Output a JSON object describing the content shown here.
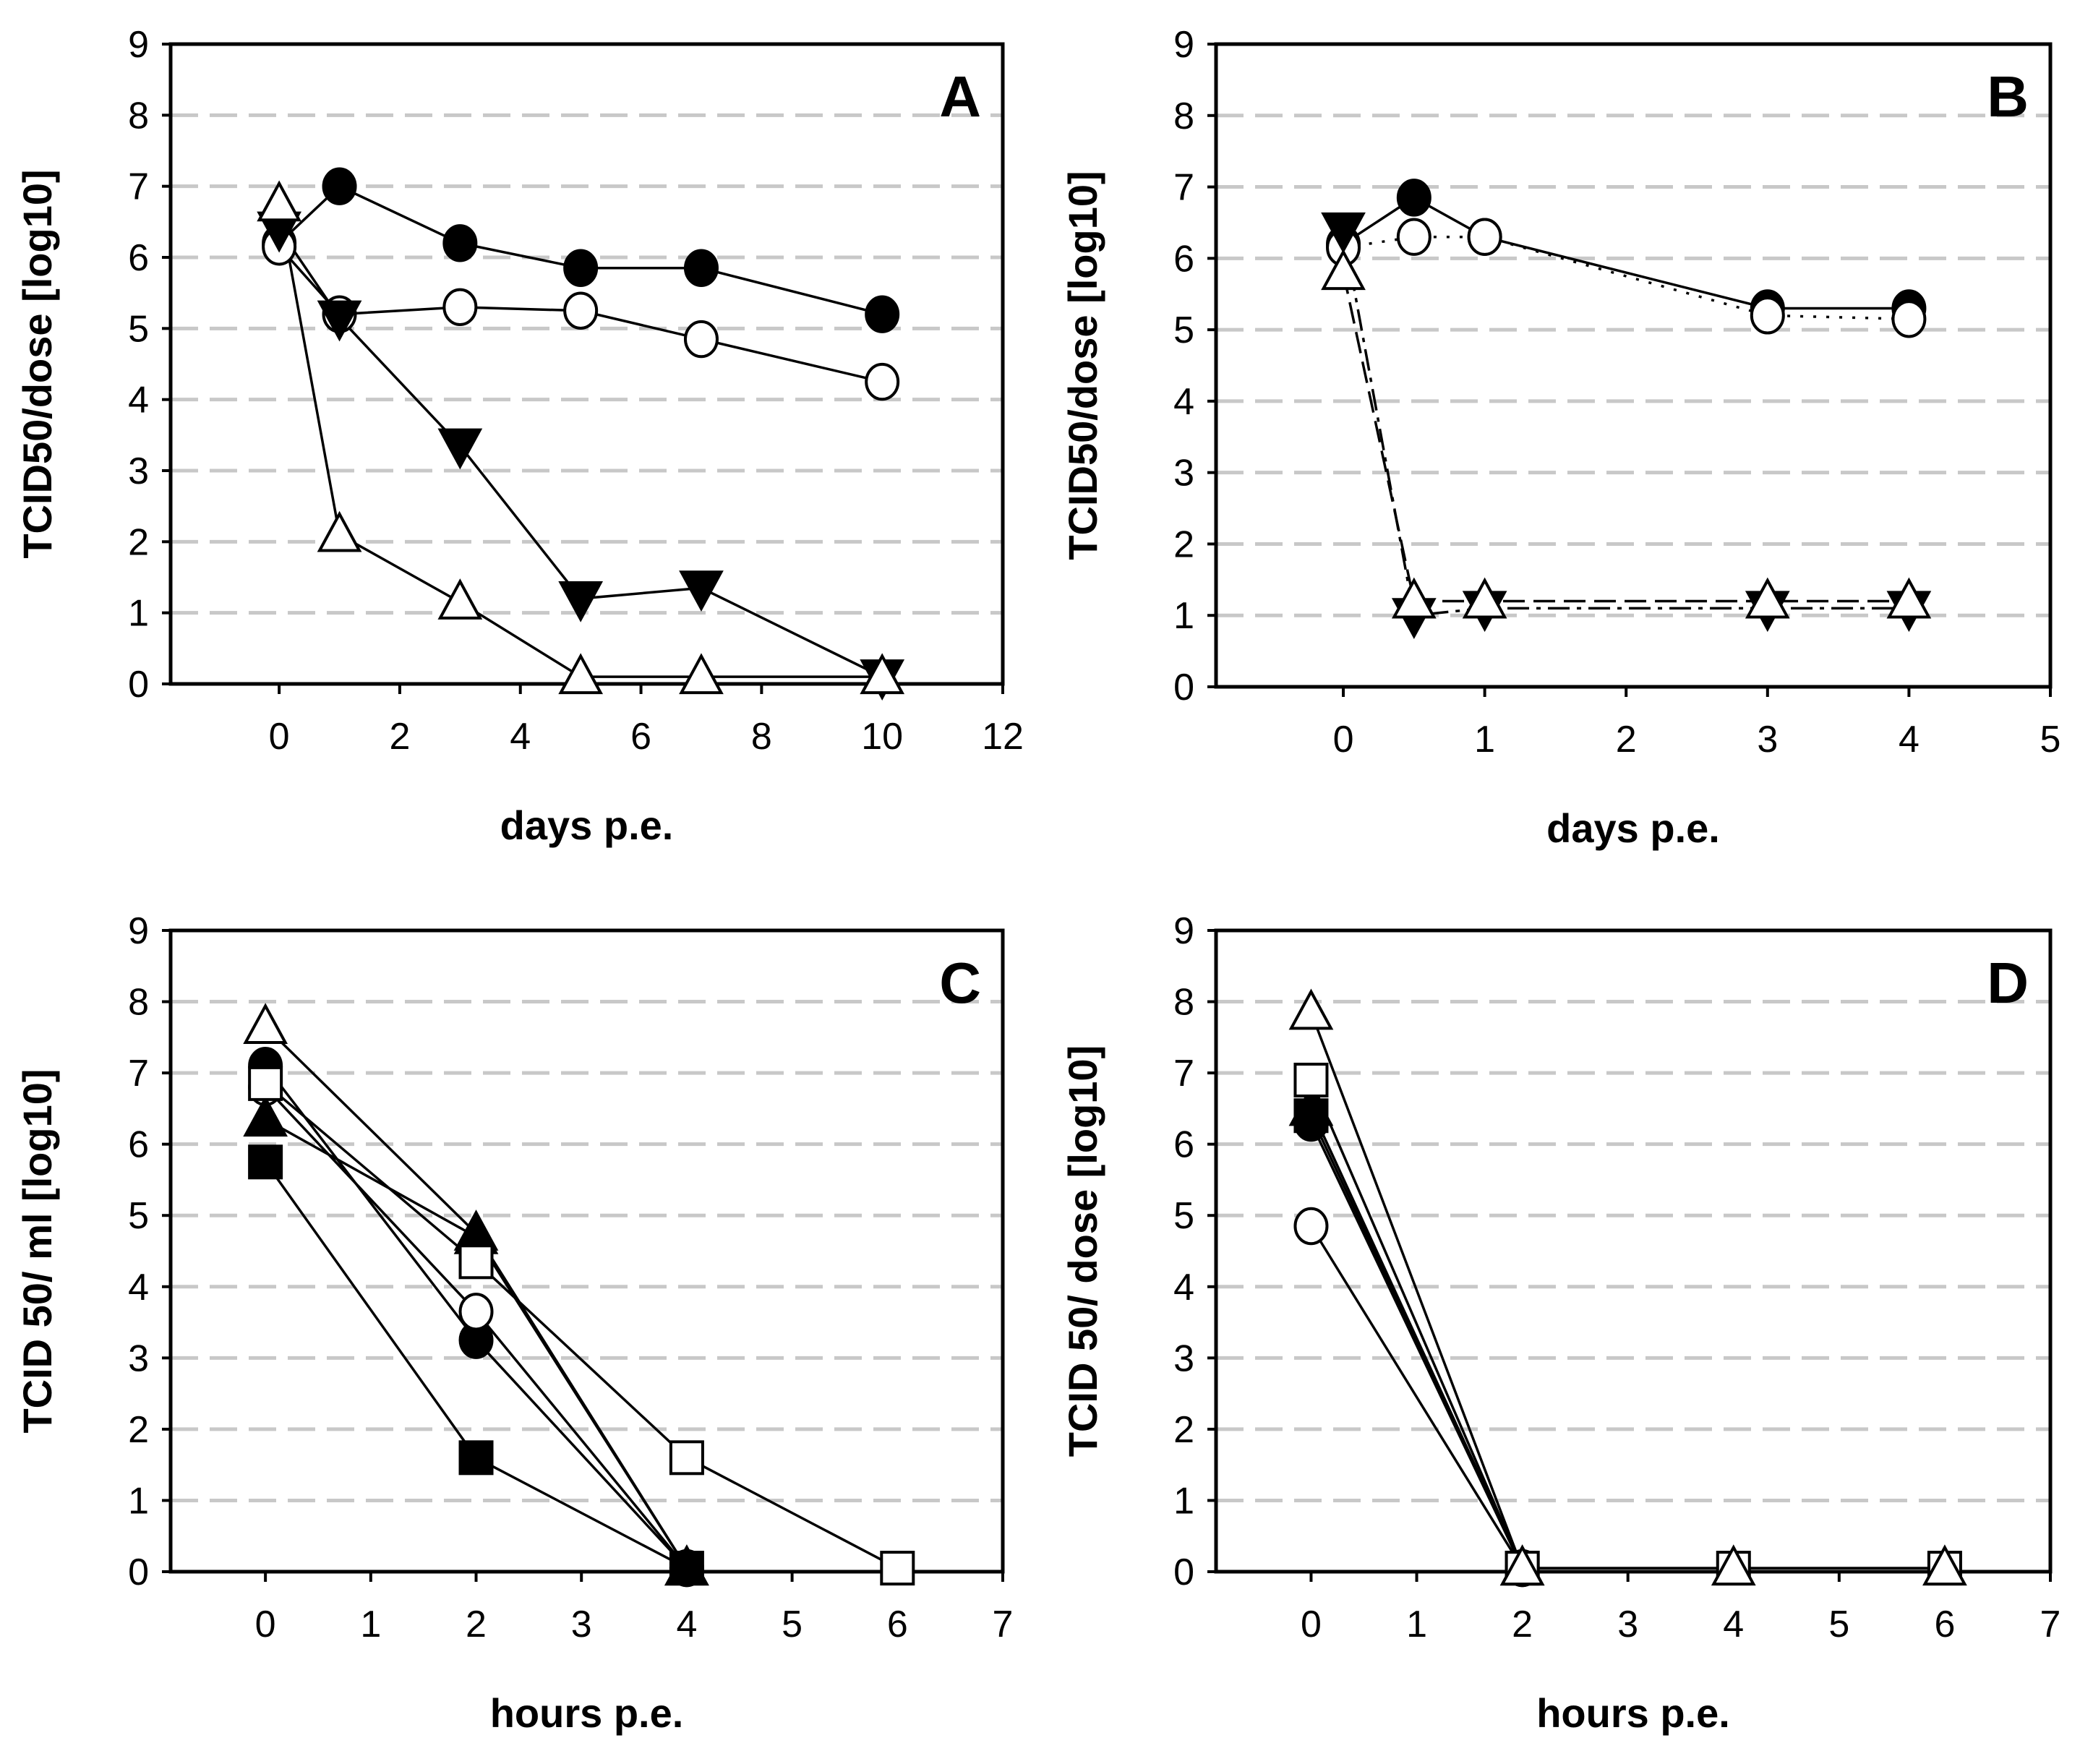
{
  "chart_data": [
    {
      "panel": "A",
      "type": "line",
      "xlabel": "days p.e.",
      "ylabel": "TCID50/dose [log10]",
      "xlim": [
        -1.8,
        12
      ],
      "ylim": [
        0,
        9
      ],
      "xticks": [
        0,
        2,
        4,
        6,
        8,
        10,
        12
      ],
      "yticks": [
        0,
        1,
        2,
        3,
        4,
        5,
        6,
        7,
        8,
        9
      ],
      "grid": "horizontal dashed",
      "series": [
        {
          "marker": "filled-circle",
          "dash": "solid",
          "x": [
            0,
            1,
            3,
            5,
            7,
            10
          ],
          "y": [
            6.2,
            7.0,
            6.2,
            5.85,
            5.85,
            5.2
          ]
        },
        {
          "marker": "open-circle",
          "dash": "solid",
          "x": [
            0,
            1,
            3,
            5,
            7,
            10
          ],
          "y": [
            6.15,
            5.2,
            5.3,
            5.25,
            4.85,
            4.25
          ]
        },
        {
          "marker": "filled-triangle-down",
          "dash": "solid",
          "x": [
            0,
            1,
            3,
            5,
            7,
            10
          ],
          "y": [
            6.4,
            5.15,
            3.35,
            1.2,
            1.35,
            0.1
          ]
        },
        {
          "marker": "open-triangle",
          "dash": "solid",
          "x": [
            0,
            1,
            3,
            5,
            7,
            10
          ],
          "y": [
            6.75,
            2.1,
            1.15,
            0.1,
            0.1,
            0.1
          ]
        }
      ]
    },
    {
      "panel": "B",
      "type": "line",
      "xlabel": "days p.e.",
      "ylabel": "TCID50/dose [log10]",
      "xlim": [
        -0.9,
        5
      ],
      "ylim": [
        0,
        9
      ],
      "xticks": [
        0,
        1,
        2,
        3,
        4,
        5
      ],
      "yticks": [
        0,
        1,
        2,
        3,
        4,
        5,
        6,
        7,
        8,
        9
      ],
      "grid": "horizontal dashed",
      "series": [
        {
          "marker": "filled-circle",
          "dash": "solid",
          "x": [
            0,
            0.5,
            1,
            3,
            4
          ],
          "y": [
            6.2,
            6.85,
            6.3,
            5.3,
            5.3
          ]
        },
        {
          "marker": "open-circle",
          "dash": "dotted",
          "x": [
            0,
            0.5,
            1,
            3,
            4
          ],
          "y": [
            6.15,
            6.3,
            6.3,
            5.2,
            5.15
          ]
        },
        {
          "marker": "filled-triangle-down",
          "dash": "dashdot",
          "x": [
            0,
            0.5,
            1,
            3,
            4
          ],
          "y": [
            6.4,
            1.0,
            1.1,
            1.1,
            1.1
          ]
        },
        {
          "marker": "open-triangle",
          "dash": "dashed",
          "x": [
            0,
            0.5,
            1,
            3,
            4
          ],
          "y": [
            5.8,
            1.2,
            1.2,
            1.2,
            1.2
          ]
        }
      ]
    },
    {
      "panel": "C",
      "type": "line",
      "xlabel": "hours p.e.",
      "ylabel": "TCID 50/ ml [log10]",
      "xlim": [
        -0.9,
        7
      ],
      "ylim": [
        0,
        9
      ],
      "xticks": [
        0,
        1,
        2,
        3,
        4,
        5,
        6,
        7
      ],
      "yticks": [
        0,
        1,
        2,
        3,
        4,
        5,
        6,
        7,
        8,
        9
      ],
      "grid": "horizontal dashed",
      "series": [
        {
          "marker": "open-triangle",
          "dash": "solid",
          "x": [
            0,
            2,
            4
          ],
          "y": [
            7.65,
            4.75,
            0.05
          ]
        },
        {
          "marker": "filled-circle",
          "dash": "solid",
          "x": [
            0,
            2,
            4
          ],
          "y": [
            7.1,
            3.25,
            0.05
          ]
        },
        {
          "marker": "open-circle",
          "dash": "solid",
          "x": [
            0,
            2,
            4
          ],
          "y": [
            6.8,
            3.65,
            0.05
          ]
        },
        {
          "marker": "filled-triangle",
          "dash": "solid",
          "x": [
            0,
            2,
            4
          ],
          "y": [
            6.35,
            4.7,
            0.05
          ]
        },
        {
          "marker": "open-square",
          "dash": "solid",
          "x": [
            0,
            2,
            4,
            6
          ],
          "y": [
            6.85,
            4.35,
            1.6,
            0.05
          ]
        },
        {
          "marker": "filled-square",
          "dash": "solid",
          "x": [
            0,
            2,
            4
          ],
          "y": [
            5.75,
            1.6,
            0.05
          ]
        }
      ]
    },
    {
      "panel": "D",
      "type": "line",
      "xlabel": "hours p.e.",
      "ylabel": "TCID 50/ dose [log10]",
      "xlim": [
        -0.9,
        7
      ],
      "ylim": [
        0,
        9
      ],
      "xticks": [
        0,
        1,
        2,
        3,
        4,
        5,
        6,
        7
      ],
      "yticks": [
        0,
        1,
        2,
        3,
        4,
        5,
        6,
        7,
        8,
        9
      ],
      "grid": "horizontal dashed",
      "series": [
        {
          "marker": "filled-triangle",
          "dash": "solid",
          "x": [
            0,
            2
          ],
          "y": [
            6.5,
            0.05
          ]
        },
        {
          "marker": "filled-circle",
          "dash": "solid",
          "x": [
            0,
            2
          ],
          "y": [
            6.3,
            0.05
          ]
        },
        {
          "marker": "filled-square",
          "dash": "solid",
          "x": [
            0,
            2
          ],
          "y": [
            6.4,
            0.05
          ]
        },
        {
          "marker": "open-circle",
          "dash": "solid",
          "x": [
            0,
            2
          ],
          "y": [
            4.85,
            0.05
          ]
        },
        {
          "marker": "open-square",
          "dash": "solid",
          "x": [
            0,
            2,
            4,
            6
          ],
          "y": [
            6.9,
            0.05,
            0.05,
            0.05
          ]
        },
        {
          "marker": "open-triangle",
          "dash": "solid",
          "x": [
            0,
            2,
            4,
            6
          ],
          "y": [
            7.85,
            0.05,
            0.05,
            0.05
          ]
        }
      ]
    }
  ]
}
